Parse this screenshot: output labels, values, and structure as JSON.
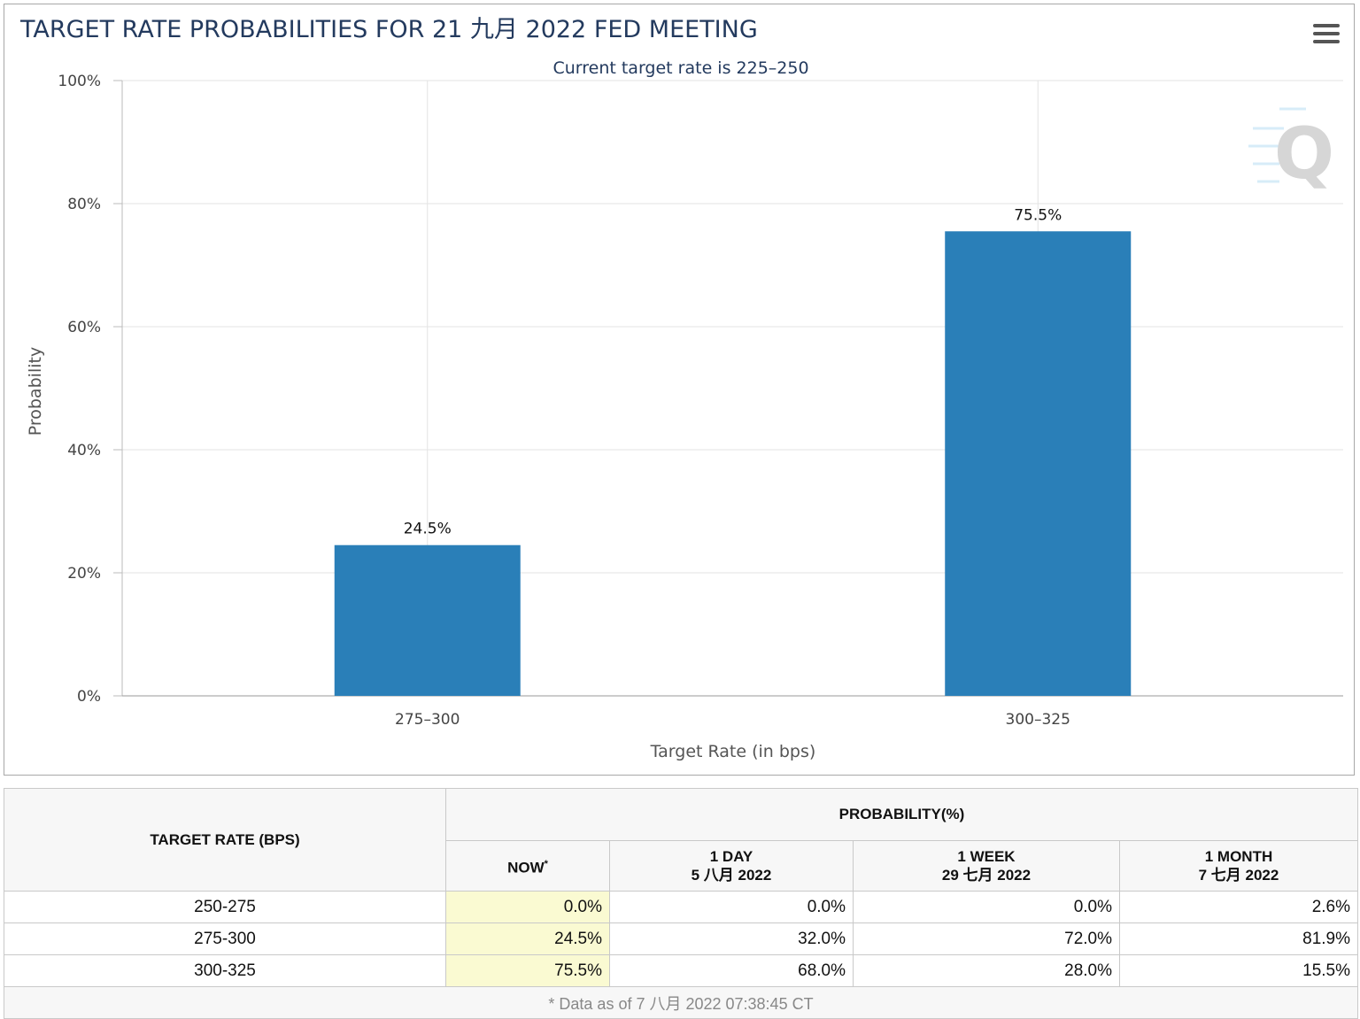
{
  "chart_data": {
    "type": "bar",
    "title": "TARGET RATE PROBABILITIES FOR 21 九月 2022 FED MEETING",
    "subtitle": "Current target rate is 225–250",
    "categories": [
      "275–300",
      "300–325"
    ],
    "values": [
      24.5,
      75.5
    ],
    "data_labels": [
      "24.5%",
      "75.5%"
    ],
    "xlabel": "Target Rate (in bps)",
    "ylabel": "Probability",
    "ylim": [
      0,
      100
    ],
    "yticks": [
      0,
      20,
      40,
      60,
      80,
      100
    ],
    "ytick_labels": [
      "0%",
      "20%",
      "40%",
      "60%",
      "80%",
      "100%"
    ],
    "bar_color": "#2a7fb8",
    "grid": true,
    "legend": "none",
    "watermark": "Q"
  },
  "menu": {
    "icon": "hamburger-menu-icon"
  },
  "table": {
    "col_target": "TARGET RATE (BPS)",
    "col_probability": "PROBABILITY(%)",
    "sub_now": "NOW",
    "sub_now_mark": "*",
    "sub_1day": [
      "1 DAY",
      "5 八月 2022"
    ],
    "sub_1week": [
      "1 WEEK",
      "29 七月 2022"
    ],
    "sub_1month": [
      "1 MONTH",
      "7 七月 2022"
    ],
    "rows": [
      {
        "rate": "250-275",
        "now": "0.0%",
        "day": "0.0%",
        "week": "0.0%",
        "month": "2.6%"
      },
      {
        "rate": "275-300",
        "now": "24.5%",
        "day": "32.0%",
        "week": "72.0%",
        "month": "81.9%"
      },
      {
        "rate": "300-325",
        "now": "75.5%",
        "day": "68.0%",
        "week": "28.0%",
        "month": "15.5%"
      }
    ],
    "footnote": "* Data as of 7 八月 2022 07:38:45 CT"
  }
}
